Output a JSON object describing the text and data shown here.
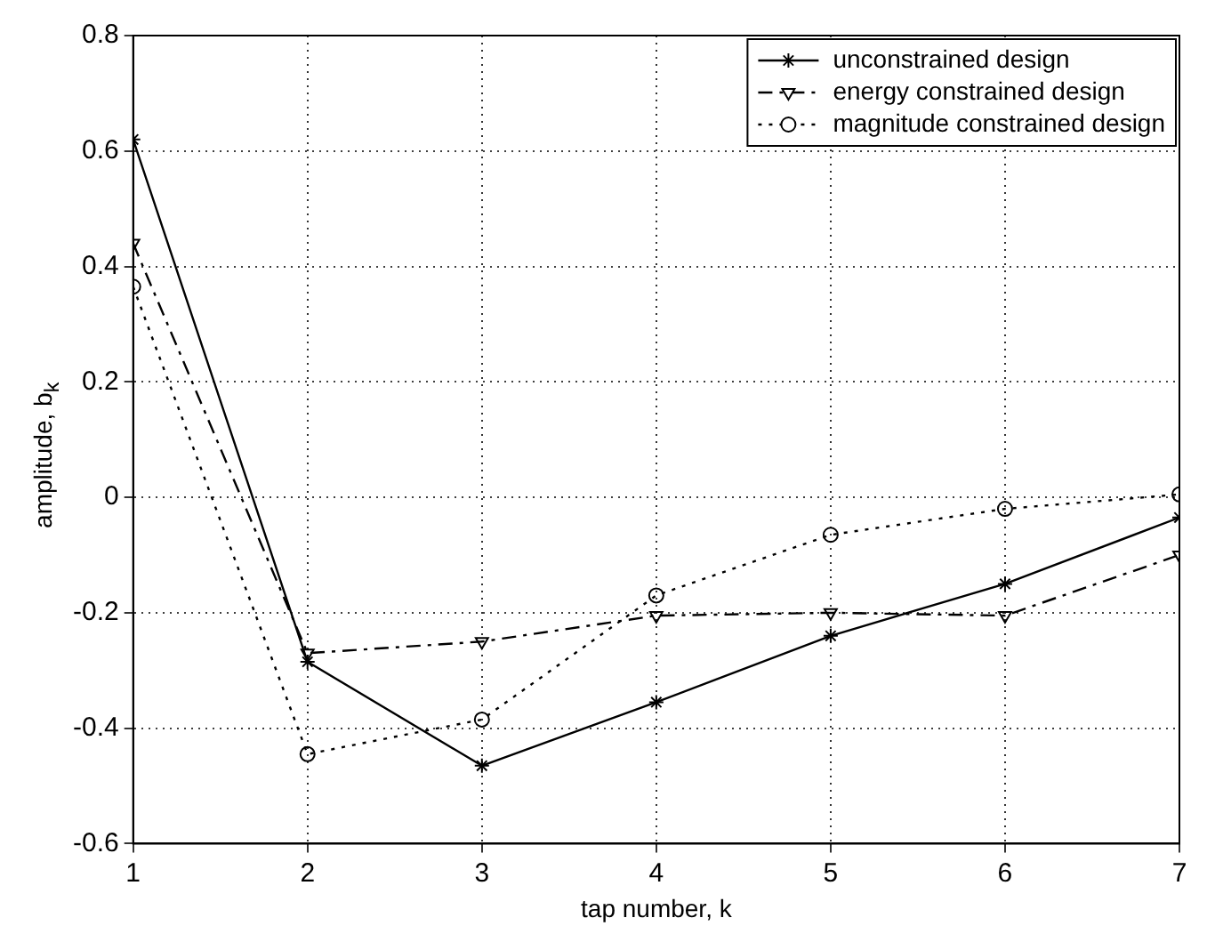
{
  "chart_data": {
    "type": "line",
    "xlabel": "tap number, k",
    "ylabel": "amplitude, b$_{k}$",
    "x": [
      1,
      2,
      3,
      4,
      5,
      6,
      7
    ],
    "series": [
      {
        "name": "unconstrained design",
        "color": "#000000",
        "marker": "cross",
        "line_style": "solid",
        "values": [
          0.62,
          -0.285,
          -0.465,
          -0.355,
          -0.24,
          -0.15,
          -0.035
        ]
      },
      {
        "name": "energy constrained design",
        "color": "#000000",
        "marker": "triangle",
        "line_style": "dashed",
        "values": [
          0.44,
          -0.27,
          -0.25,
          -0.205,
          -0.2,
          -0.205,
          -0.1
        ]
      },
      {
        "name": "magnitude constrained design",
        "color": "#000000",
        "marker": "circle",
        "line_style": "dotted",
        "values": [
          0.365,
          -0.445,
          -0.385,
          -0.17,
          -0.065,
          -0.02,
          0.005
        ]
      }
    ],
    "xlim": [
      1,
      7
    ],
    "xticks": [
      1,
      2,
      3,
      4,
      5,
      6,
      7
    ],
    "ylim": [
      -0.6,
      0.8
    ],
    "yticks": [
      -0.6,
      -0.4,
      -0.2,
      0,
      0.2,
      0.4,
      0.6,
      0.8
    ],
    "grid": true,
    "legend": "top right"
  }
}
